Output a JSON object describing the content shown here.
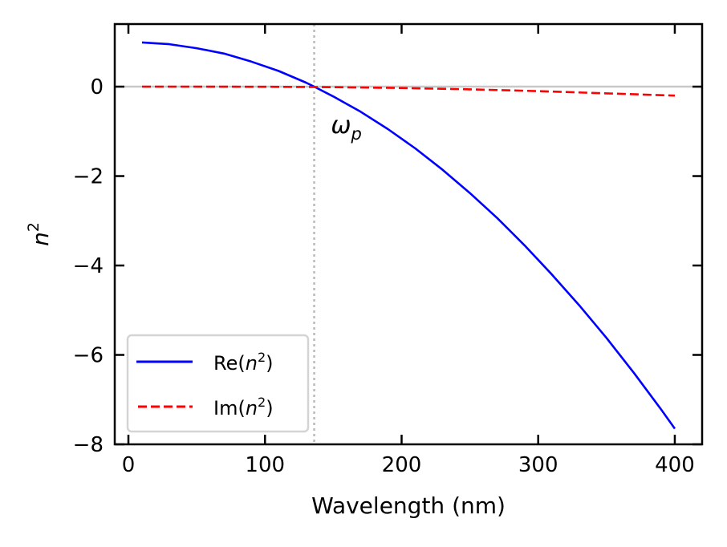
{
  "chart_data": {
    "type": "line",
    "title": "",
    "xlabel": "Wavelength (nm)",
    "ylabel": "n²",
    "xlim": [
      -10,
      420
    ],
    "ylim": [
      -8,
      1.4
    ],
    "xticks": [
      0,
      100,
      200,
      300,
      400
    ],
    "xtick_labels": [
      "0",
      "100",
      "200",
      "300",
      "400"
    ],
    "yticks": [
      0,
      -2,
      -4,
      -6,
      -8
    ],
    "ytick_labels": [
      "0",
      "−2",
      "−4",
      "−6",
      "−8"
    ],
    "grid": false,
    "legend_position": "lower-left",
    "reference_lines": {
      "horizontal_zero": {
        "y": 0,
        "color": "#c8c8c8",
        "style": "solid"
      },
      "vertical_plasma": {
        "x": 136,
        "color": "#bbbbbb",
        "style": "dotted"
      }
    },
    "annotation": {
      "text_main": "ω",
      "text_sub": "p",
      "x": 150,
      "y": -1.0
    },
    "series": [
      {
        "name": "Re(n²)",
        "legend_main": "Re(",
        "legend_var": "n",
        "legend_sup": "2",
        "legend_close": ")",
        "color": "#0000ff",
        "style": "solid",
        "x": [
          10,
          30,
          50,
          70,
          90,
          110,
          130,
          136,
          150,
          170,
          190,
          210,
          230,
          250,
          270,
          290,
          310,
          330,
          350,
          370,
          390,
          400
        ],
        "y": [
          0.99,
          0.95,
          0.86,
          0.74,
          0.56,
          0.35,
          0.09,
          0.0,
          -0.22,
          -0.56,
          -0.95,
          -1.38,
          -1.86,
          -2.38,
          -2.94,
          -3.55,
          -4.2,
          -4.89,
          -5.62,
          -6.4,
          -7.22,
          -7.65
        ]
      },
      {
        "name": "Im(n²)",
        "legend_main": "Im(",
        "legend_var": "n",
        "legend_sup": "2",
        "legend_close": ")",
        "color": "#ff0000",
        "style": "dashed",
        "x": [
          10,
          50,
          100,
          136,
          150,
          200,
          250,
          300,
          350,
          400
        ],
        "y": [
          0.0,
          0.0,
          -0.003,
          -0.008,
          -0.012,
          -0.03,
          -0.06,
          -0.1,
          -0.15,
          -0.2
        ]
      }
    ]
  }
}
